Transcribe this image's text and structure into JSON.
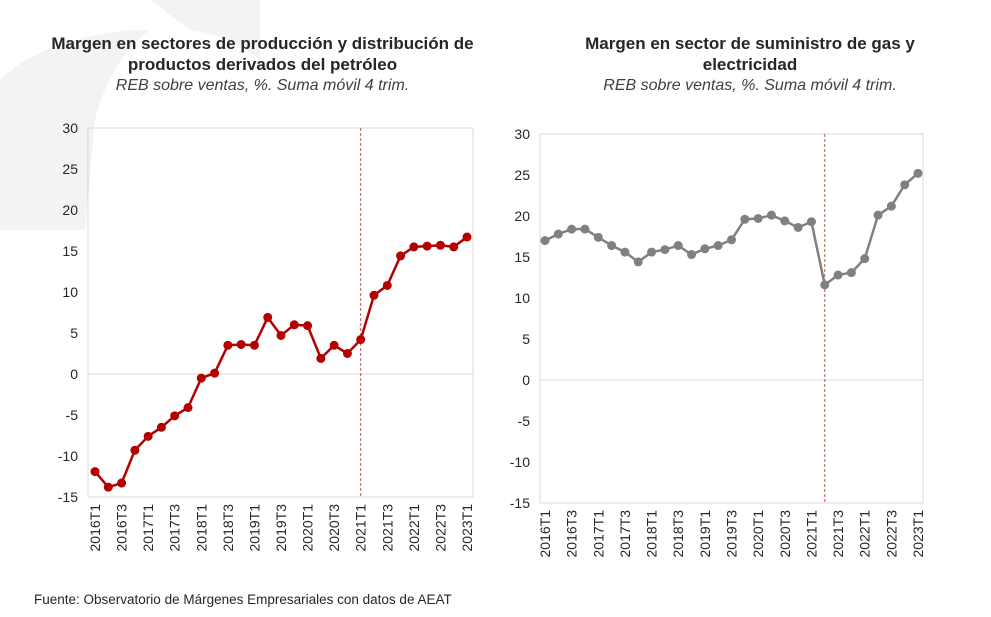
{
  "source": "Fuente: Observatorio de Márgenes Empresariales con datos de AEAT",
  "chart_data": [
    {
      "type": "line",
      "title": "Margen en sectores de producción y distribución de productos derivados del petróleo",
      "subtitle": "REB sobre ventas, %. Suma móvil 4 trim.",
      "color": "#b30000",
      "ylim": [
        -15,
        30
      ],
      "yticks": [
        30,
        25,
        20,
        15,
        10,
        5,
        0,
        -5,
        -10,
        -15
      ],
      "xtick_labels": [
        "2016T1",
        "2016T3",
        "2017T1",
        "2017T3",
        "2018T1",
        "2018T3",
        "2019T1",
        "2019T3",
        "2020T1",
        "2020T3",
        "2021T1",
        "2021T3",
        "2022T1",
        "2022T3",
        "2023T1"
      ],
      "categories": [
        "2016T1",
        "2016T2",
        "2016T3",
        "2016T4",
        "2017T1",
        "2017T2",
        "2017T3",
        "2017T4",
        "2018T1",
        "2018T2",
        "2018T3",
        "2018T4",
        "2019T1",
        "2019T2",
        "2019T3",
        "2019T4",
        "2020T1",
        "2020T2",
        "2020T3",
        "2020T4",
        "2021T1",
        "2021T2",
        "2021T3",
        "2021T4",
        "2022T1",
        "2022T2",
        "2022T3",
        "2022T4",
        "2023T1"
      ],
      "values": [
        -11.9,
        -13.8,
        -13.3,
        -9.3,
        -7.6,
        -6.5,
        -5.1,
        -4.1,
        -0.5,
        0.1,
        3.5,
        3.6,
        3.5,
        6.9,
        4.7,
        6.0,
        5.9,
        1.9,
        3.5,
        2.5,
        4.2,
        9.6,
        10.8,
        14.4,
        15.5,
        15.6,
        15.7,
        15.5,
        16.7
      ],
      "reference_line_at": "2021T1",
      "grid": "horizontal zero line only"
    },
    {
      "type": "line",
      "title": "Margen en sector de suministro de gas y electricidad",
      "subtitle": "REB sobre ventas, %. Suma móvil 4 trim.",
      "color": "#808080",
      "ylim": [
        -15,
        30
      ],
      "yticks": [
        30,
        25,
        20,
        15,
        10,
        5,
        0,
        -5,
        -10,
        -15
      ],
      "xtick_labels": [
        "2016T1",
        "2016T3",
        "2017T1",
        "2017T3",
        "2018T1",
        "2018T3",
        "2019T1",
        "2019T3",
        "2020T1",
        "2020T3",
        "2021T1",
        "2021T3",
        "2022T1",
        "2022T3",
        "2023T1"
      ],
      "categories": [
        "2016T1",
        "2016T2",
        "2016T3",
        "2016T4",
        "2017T1",
        "2017T2",
        "2017T3",
        "2017T4",
        "2018T1",
        "2018T2",
        "2018T3",
        "2018T4",
        "2019T1",
        "2019T2",
        "2019T3",
        "2019T4",
        "2020T1",
        "2020T2",
        "2020T3",
        "2020T4",
        "2021T1",
        "2021T2",
        "2021T3",
        "2021T4",
        "2022T1",
        "2022T2",
        "2022T3",
        "2022T4",
        "2023T1"
      ],
      "values": [
        17.0,
        17.8,
        18.4,
        18.4,
        17.4,
        16.4,
        15.6,
        14.4,
        15.6,
        15.9,
        16.4,
        15.3,
        16.0,
        16.4,
        17.1,
        19.6,
        19.7,
        20.1,
        19.4,
        18.6,
        19.3,
        11.6,
        12.8,
        13.1,
        14.8,
        20.1,
        21.2,
        23.8,
        25.2
      ],
      "reference_line_at": "2021T2",
      "grid": "horizontal zero line only"
    }
  ]
}
